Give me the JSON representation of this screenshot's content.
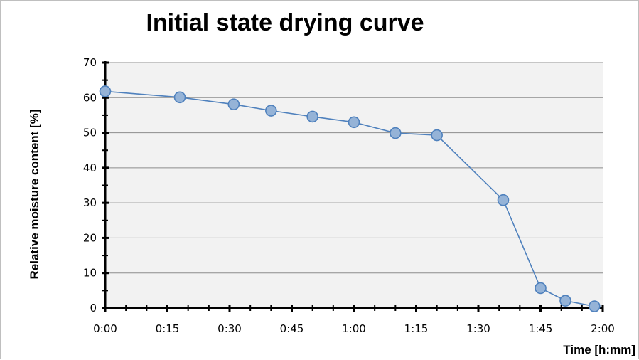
{
  "chart_data": {
    "type": "line",
    "title": "Initial state drying curve",
    "xlabel": "Time [h:mm]",
    "ylabel": "Relative moisture content  [%]",
    "x_unit": "minutes",
    "xlim": [
      0,
      120
    ],
    "ylim": [
      0,
      70
    ],
    "x_ticks": [
      {
        "value": 0,
        "label": "0:00"
      },
      {
        "value": 15,
        "label": "0:15"
      },
      {
        "value": 30,
        "label": "0:30"
      },
      {
        "value": 45,
        "label": "0:45"
      },
      {
        "value": 60,
        "label": "1:00"
      },
      {
        "value": 75,
        "label": "1:15"
      },
      {
        "value": 90,
        "label": "1:30"
      },
      {
        "value": 105,
        "label": "1:45"
      },
      {
        "value": 120,
        "label": "2:00"
      }
    ],
    "y_ticks": [
      0,
      10,
      20,
      30,
      40,
      50,
      60,
      70
    ],
    "grid": "horizontal",
    "legend": "none",
    "colors": {
      "line": "#4f81bd",
      "marker_fill": "#95b3d7",
      "plot_bg": "#f2f2f2",
      "grid": "#8c8c8c"
    },
    "series": [
      {
        "x": [
          0,
          18,
          31,
          40,
          50,
          60,
          70,
          80,
          96,
          105,
          111,
          118
        ],
        "y": [
          61.8,
          60.1,
          58.1,
          56.3,
          54.6,
          53.0,
          49.9,
          49.3,
          30.8,
          5.7,
          2.1,
          0.5
        ]
      }
    ]
  }
}
